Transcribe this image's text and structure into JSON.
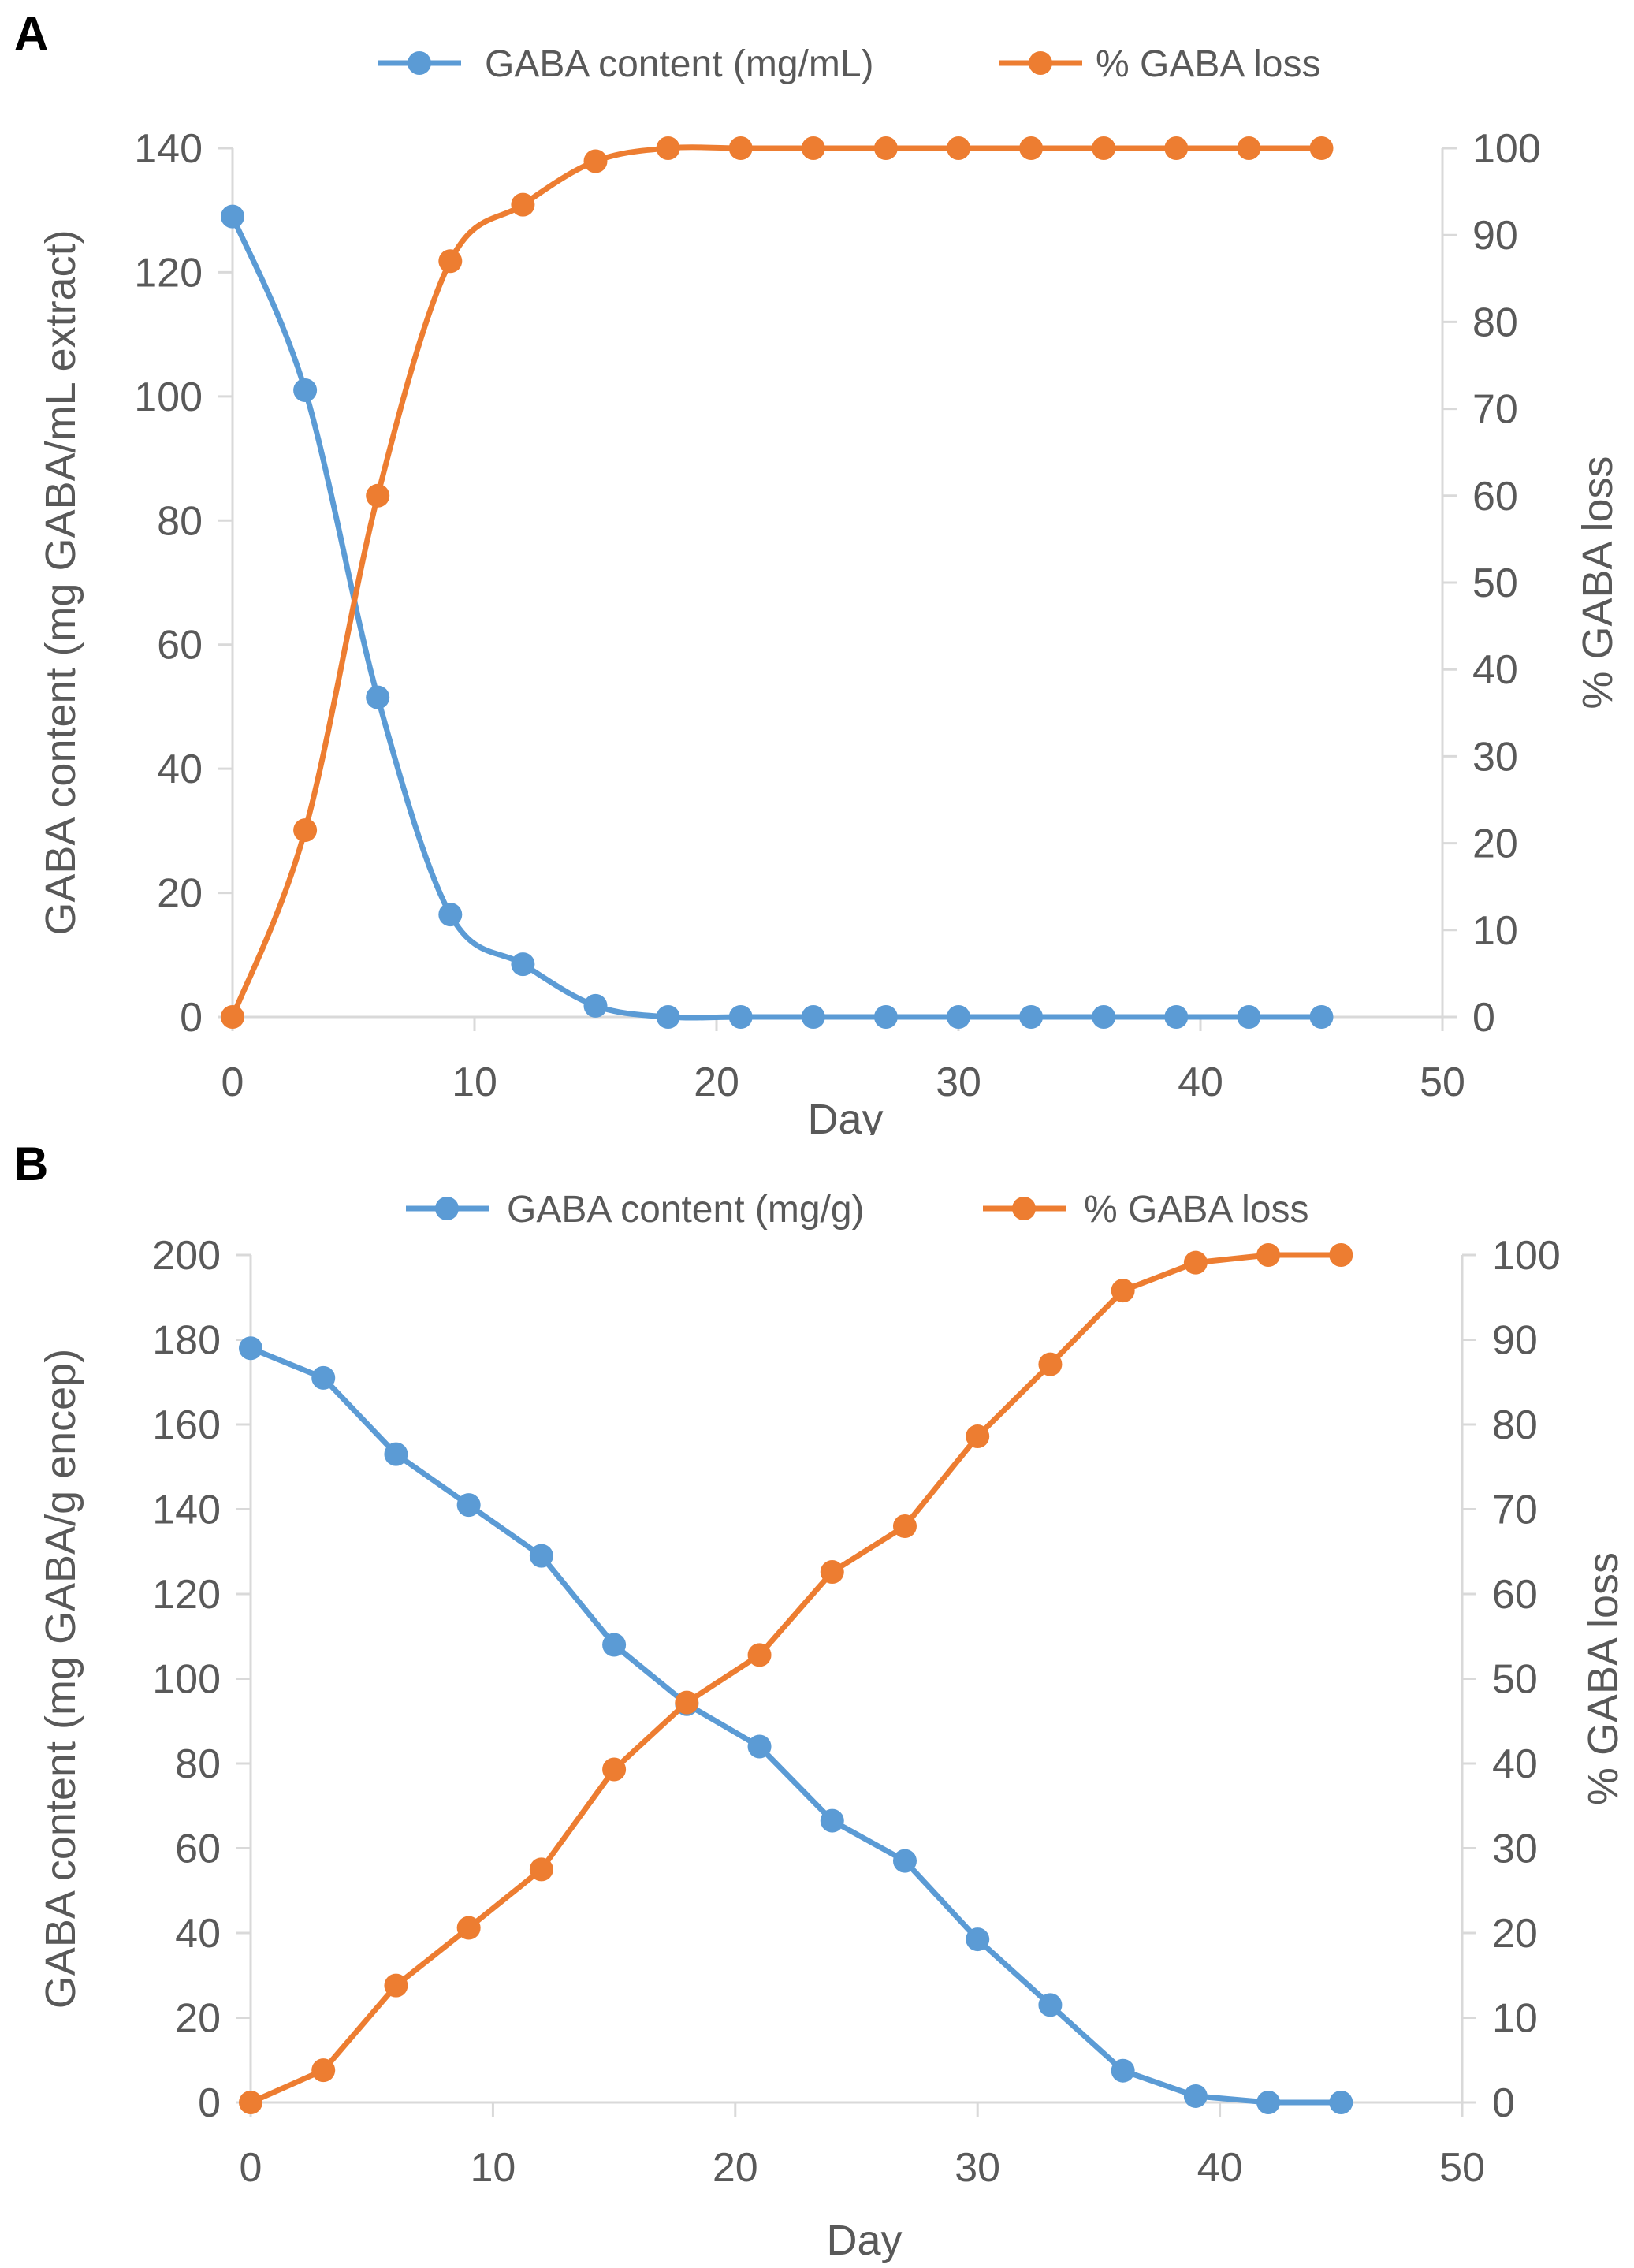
{
  "chart_data": [
    {
      "id": "A",
      "panel_label": "A",
      "type": "line",
      "x": [
        0,
        3,
        6,
        9,
        12,
        15,
        18,
        21,
        24,
        27,
        30,
        33,
        36,
        39,
        42,
        45
      ],
      "series": [
        {
          "name": "GABA content (mg/mL)",
          "axis": "left",
          "color": "#5B9BD5",
          "values": [
            129,
            101,
            51.5,
            16.5,
            8.5,
            1.8,
            0,
            0,
            0,
            0,
            0,
            0,
            0,
            0,
            0,
            0
          ]
        },
        {
          "name": "% GABA loss",
          "axis": "right",
          "color": "#ED7D31",
          "values": [
            0,
            21.5,
            60,
            87,
            93.5,
            98.5,
            100,
            100,
            100,
            100,
            100,
            100,
            100,
            100,
            100,
            100
          ]
        }
      ],
      "xlabel": "Day",
      "ylabel": "GABA content (mg GABA/mL extract)",
      "y2label": "% GABA loss",
      "xlim": [
        0,
        50
      ],
      "xticks": [
        0,
        10,
        20,
        30,
        40,
        50
      ],
      "ylim": [
        0,
        140
      ],
      "yticks": [
        0,
        20,
        40,
        60,
        80,
        100,
        120,
        140
      ],
      "y2lim": [
        0,
        100
      ],
      "y2ticks": [
        0,
        10,
        20,
        30,
        40,
        50,
        60,
        70,
        80,
        90,
        100
      ],
      "legend_position": "top-center",
      "grid": false
    },
    {
      "id": "B",
      "panel_label": "B",
      "type": "line",
      "x": [
        0,
        3,
        6,
        9,
        12,
        15,
        18,
        21,
        24,
        27,
        30,
        33,
        36,
        39,
        42,
        45
      ],
      "series": [
        {
          "name": "GABA content (mg/g)",
          "axis": "left",
          "color": "#5B9BD5",
          "values": [
            178,
            171,
            153,
            141,
            129,
            108,
            94,
            84,
            66.5,
            57,
            38.5,
            23,
            7.5,
            1.5,
            0,
            0
          ]
        },
        {
          "name": "% GABA loss",
          "axis": "right",
          "color": "#ED7D31",
          "values": [
            0,
            3.8,
            13.8,
            20.6,
            27.5,
            39.3,
            47.2,
            52.8,
            62.6,
            68,
            78.6,
            87.1,
            95.8,
            99.1,
            100,
            100
          ]
        }
      ],
      "xlabel": "Day",
      "ylabel": "GABA content (mg GABA/g encep)",
      "y2label": "% GABA loss",
      "xlim": [
        0,
        50
      ],
      "xticks": [
        0,
        10,
        20,
        30,
        40,
        50
      ],
      "ylim": [
        0,
        200
      ],
      "yticks": [
        0,
        20,
        40,
        60,
        80,
        100,
        120,
        140,
        160,
        180,
        200
      ],
      "y2lim": [
        0,
        100
      ],
      "y2ticks": [
        0,
        10,
        20,
        30,
        40,
        50,
        60,
        70,
        80,
        90,
        100
      ],
      "legend_position": "top-center",
      "grid": false
    }
  ]
}
